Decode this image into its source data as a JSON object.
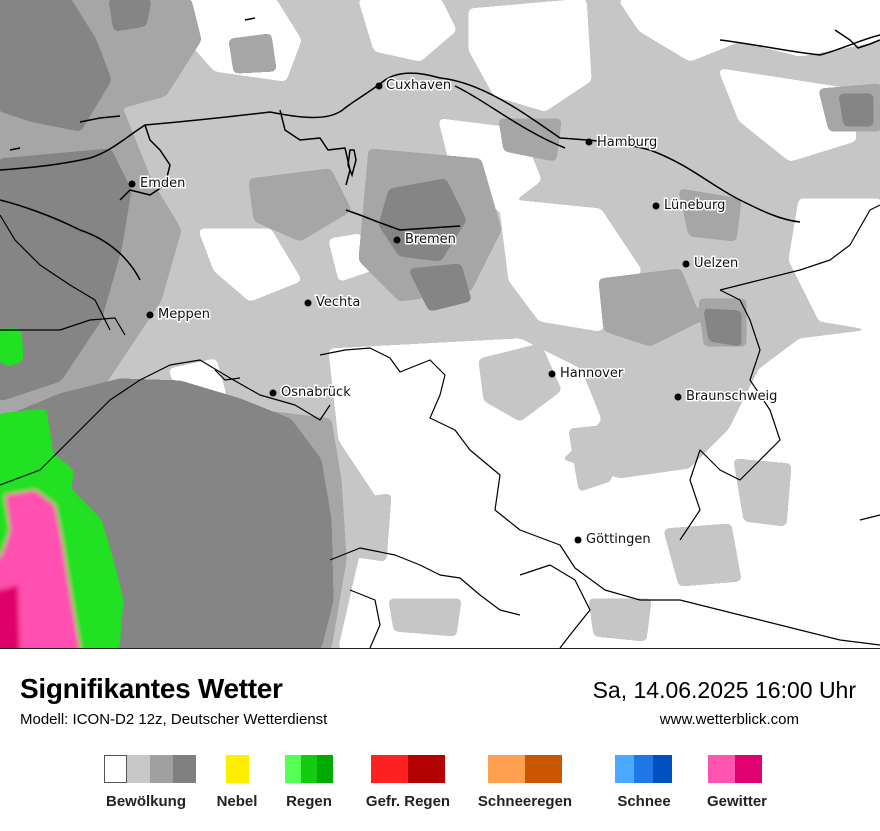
{
  "map": {
    "cities": [
      {
        "name": "Cuxhaven"
      },
      {
        "name": "Hamburg"
      },
      {
        "name": "Emden"
      },
      {
        "name": "Lüneburg"
      },
      {
        "name": "Bremen"
      },
      {
        "name": "Uelzen"
      },
      {
        "name": "Vechta"
      },
      {
        "name": "Meppen"
      },
      {
        "name": "Hannover"
      },
      {
        "name": "Osnabrück"
      },
      {
        "name": "Braunschweig"
      },
      {
        "name": "Göttingen"
      }
    ],
    "colors": {
      "cloud_light": "#c6c6c6",
      "cloud_medium": "#a6a6a6",
      "cloud_heavy": "#858585",
      "rain": "#22e022",
      "thunderstorm": "#ff4fb0",
      "thunderstorm_strong": "#e0006a"
    }
  },
  "footer": {
    "title": "Signifikantes Wetter",
    "subtitle": "Modell: ICON-D2 12z, Deutscher Wetterdienst",
    "datetime": "Sa, 14.06.2025 16:00 Uhr",
    "website": "www.wetterblick.com"
  },
  "legend": [
    {
      "label": "Bewölkung",
      "colors": [
        "#ffffff",
        "#c8c8c8",
        "#a0a0a0",
        "#808080"
      ]
    },
    {
      "label": "Nebel",
      "colors": [
        "#ffee00"
      ]
    },
    {
      "label": "Regen",
      "colors": [
        "#55ff55",
        "#11cc11",
        "#00aa00"
      ]
    },
    {
      "label": "Gefr. Regen",
      "colors": [
        "#ff2020",
        "#b30000"
      ]
    },
    {
      "label": "Schneeregen",
      "colors": [
        "#ffa050",
        "#cc5500"
      ]
    },
    {
      "label": "Schnee",
      "colors": [
        "#4aa8ff",
        "#1e78e8",
        "#0050c0"
      ]
    },
    {
      "label": "Gewitter",
      "colors": [
        "#ff55b0",
        "#e00070"
      ]
    }
  ]
}
